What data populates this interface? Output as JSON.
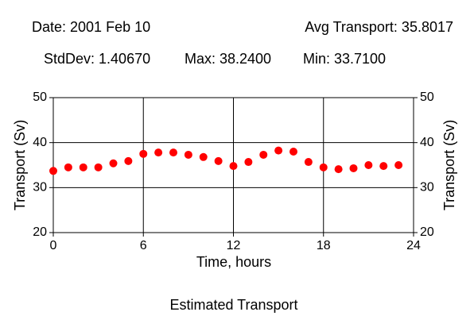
{
  "chart_data": {
    "type": "scatter",
    "annotations": [
      "Date: 2001 Feb 10",
      "Avg Transport: 35.8017",
      "StdDev: 1.40670",
      "Max: 38.2400",
      "Min: 33.7100"
    ],
    "title": "Estimated Transport",
    "x_label": "Time, hours",
    "y_label": "Transport (Sv)",
    "x": [
      0,
      1,
      2,
      3,
      4,
      5,
      6,
      7,
      8,
      9,
      10,
      11,
      12,
      13,
      14,
      15,
      16,
      17,
      18,
      19,
      20,
      21,
      22,
      23
    ],
    "values": [
      33.71,
      34.5,
      34.5,
      34.5,
      35.4,
      35.9,
      37.5,
      37.8,
      37.8,
      37.3,
      36.8,
      35.9,
      34.8,
      35.7,
      37.3,
      38.24,
      38.0,
      35.7,
      34.5,
      34.1,
      34.3,
      35.0,
      34.8,
      35.0
    ],
    "color": "#ff0000",
    "xlim": [
      0,
      24
    ],
    "xticks": [
      0,
      6,
      12,
      18,
      24
    ],
    "ylim": [
      20,
      50
    ],
    "yticks": [
      20,
      30,
      40,
      50
    ],
    "grid": true
  }
}
